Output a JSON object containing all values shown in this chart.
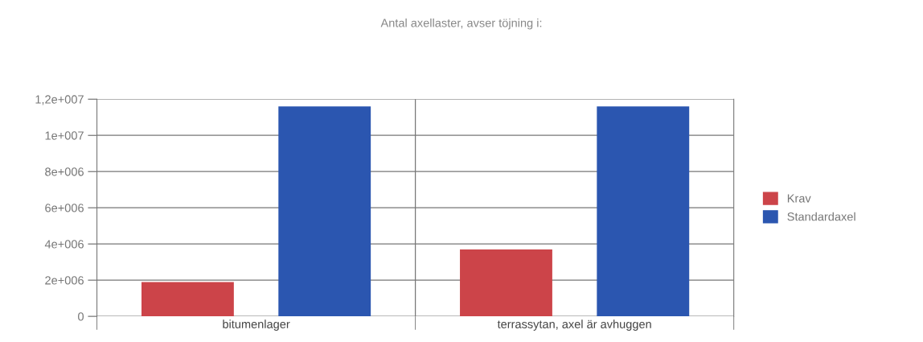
{
  "chart_data": {
    "type": "bar",
    "title": "Antal axellaster, avser töjning i:",
    "categories": [
      "bitumenlager",
      "terrassytan, axel är avhuggen"
    ],
    "series": [
      {
        "name": "Krav",
        "color": "#cc4449",
        "values": [
          1900000,
          3700000
        ]
      },
      {
        "name": "Standardaxel",
        "color": "#2b56b0",
        "values": [
          11600000,
          11600000
        ]
      }
    ],
    "ylim": [
      0,
      12000000
    ],
    "yticks": [
      0,
      {
        "value": 2000000,
        "label": "2e+006"
      },
      {
        "value": 4000000,
        "label": "4e+006"
      },
      {
        "value": 6000000,
        "label": "6e+006"
      },
      {
        "value": 8000000,
        "label": "8e+006"
      },
      {
        "value": 10000000,
        "label": "1e+007"
      },
      {
        "value": 12000000,
        "label": "1,2e+007"
      }
    ],
    "grid": "y",
    "legend": "right"
  }
}
